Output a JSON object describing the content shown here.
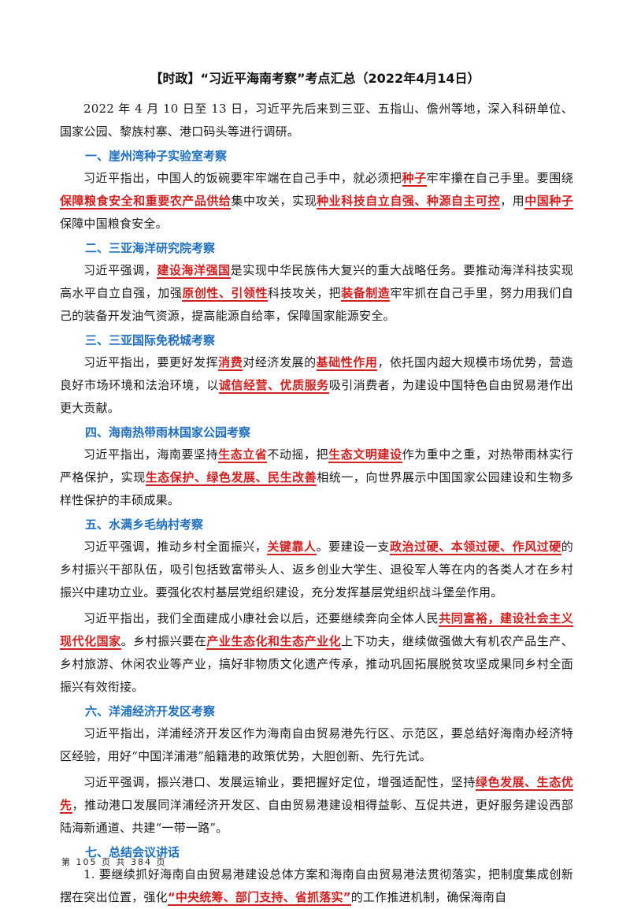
{
  "title": "【时政】“习近平海南考察”考点汇总（2022年4月14日）",
  "intro": "2022 年 4 月 10 日至 13 日，习近平先后来到三亚、五指山、儋州等地，深入科研单位、国家公园、黎族村寨、港口码头等进行调研。",
  "s1": {
    "heading": "一、崖州湾种子实验室考察",
    "p1": [
      "习近平指出，中国人的饭碗要牢牢端在自己手中，就必须把",
      "种子",
      "牢牢攥在自己手里。要围绕",
      "保障粮食安全和重要农产品供给",
      "集中攻关，实现",
      "种业科技自立自强、种源自主可控",
      "，用",
      "中国种子",
      "保障中国粮食安全。"
    ]
  },
  "s2": {
    "heading": "二、三亚海洋研究院考察",
    "p1": [
      "习近平强调，",
      "建设海洋强国",
      "是实现中华民族伟大复兴的重大战略任务。要推动海洋科技实现高水平自立自强，加强",
      "原创性、引领性",
      "科技攻关，把",
      "装备制造",
      "牢牢抓在自己手里，努力用我们自己的装备开发油气资源，提高能源自给率，保障国家能源安全。"
    ]
  },
  "s3": {
    "heading": "三、三亚国际免税城考察",
    "p1": [
      "习近平指出，要更好发挥",
      "消费",
      "对经济发展的",
      "基础性作用",
      "，依托国内超大规模市场优势，营造良好市场环境和法治环境，以",
      "诚信经营、优质服务",
      "吸引消费者，为建设中国特色自由贸易港作出更大贡献。"
    ]
  },
  "s4": {
    "heading": "四、海南热带雨林国家公园考察",
    "p1": [
      "习近平指出，海南要坚持",
      "生态立省",
      "不动摇，把",
      "生态文明建设",
      "作为重中之重，对热带雨林实行严格保护，实现",
      "生态保护、绿色发展、民生改善",
      "相统一，向世界展示中国国家公园建设和生物多样性保护的丰硕成果。"
    ]
  },
  "s5": {
    "heading": "五、水满乡毛纳村考察",
    "p1": [
      "习近平强调，推动乡村全面振兴，",
      "关键靠人",
      "。要建设一支",
      "政治过硬、本领过硬、作风过硬",
      "的乡村振兴干部队伍，吸引包括致富带头人、返乡创业大学生、退役军人等在内的各类人才在乡村振兴中建功立业。要强化农村基层党组织建设，充分发挥基层党组织战斗堡垒作用。"
    ],
    "p2": [
      "习近平指出，我们全面建成小康社会以后，还要继续奔向全体人民",
      "共同富裕，建设社会主义现代化国家",
      "。乡村振兴要在",
      "产业生态化和生态产业化",
      "上下功夫，继续做强做大有机农产品生产、乡村旅游、休闲农业等产业，搞好非物质文化遗产传承，推动巩固拓展脱贫攻坚成果同乡村全面振兴有效衔接。"
    ]
  },
  "s6": {
    "heading": "六、洋浦经济开发区考察",
    "p1": [
      "习近平指出，洋浦经济开发区作为海南自由贸易港先行区、示范区，要总结好海南办经济特区经验，用好“中国洋浦港”船籍港的政策优势，大胆创新、先行先试。"
    ],
    "p2": [
      "习近平强调，振兴港口、发展运输业，要把握好定位，增强适配性，坚持",
      "绿色发展、生态优先",
      "，推动港口发展同洋浦经济开发区、自由贸易港建设相得益彰、互促共进，更好服务建设西部陆海新通道、共建“一带一路”。"
    ]
  },
  "s7": {
    "heading": "七、总结会议讲话",
    "p1": [
      "1. 要继续抓好海南自由贸易港建设总体方案和海南自由贸易港法贯彻落实，把制度集成创新摆在突出位置，强化",
      "“中央统筹、部门支持、省抓落实”",
      "的工作推进机制，确保海南自"
    ]
  },
  "footer": "第 105 页 共 384 页",
  "colors": {
    "heading": "#1f6fbf",
    "highlight": "#d21f1f"
  }
}
